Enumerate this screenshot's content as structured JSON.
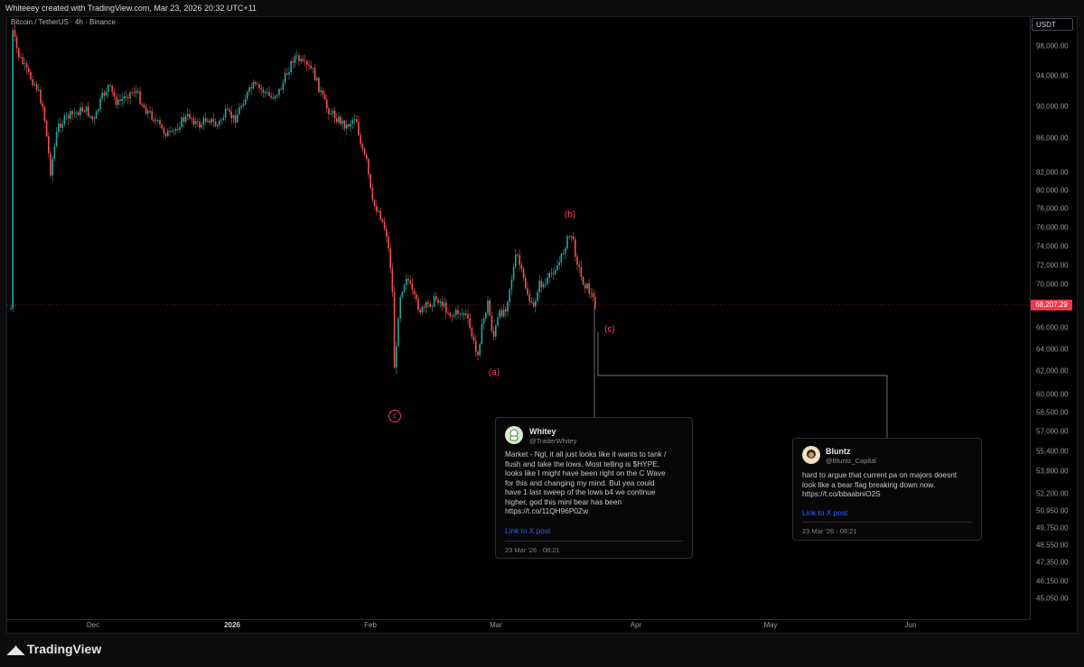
{
  "header": {
    "attribution": "Whiteeey created with TradingView.com, Mar 23, 2026 20:32 UTC+11"
  },
  "chart": {
    "symbol_line": "Bitcoin / TetherUS · 4h · Binance",
    "currency": "USDT",
    "current_price": "68,207.29",
    "price_ticks": [
      "98,000.00",
      "94,000.00",
      "90,000.00",
      "86,000.00",
      "82,000.00",
      "80,000.00",
      "78,000.00",
      "76,000.00",
      "74,000.00",
      "72,000.00",
      "70,000.00",
      "66,000.00",
      "64,000.00",
      "62,000.00",
      "60,000.00",
      "58,500.00",
      "57,000.00",
      "55,400.00",
      "53,800.00",
      "52,200.00",
      "50,950.00",
      "49,750.00",
      "48,550.00",
      "47,350.00",
      "46,150.00",
      "45,050.00"
    ],
    "time_ticks": [
      "Dec",
      "2026",
      "Feb",
      "Mar",
      "Apr",
      "May",
      "Jun"
    ],
    "waves": {
      "c_circle": "c",
      "a": "(a)",
      "b": "(b)",
      "c": "(c)"
    }
  },
  "tweets": [
    {
      "name": "Whitey",
      "handle": "@TraderWhitey",
      "body_lines": [
        "Market - Ngl, it all just looks like it wants to tank /",
        "flush and take the lows. Most telling is $HYPE,",
        "looks like I might have been right on the C Wave",
        "for this and changing my mind. But yea could",
        "have 1 last sweep of the lows b4 we continue",
        "higher, god this mini bear has been",
        "https://t.co/11QH96P0Zw"
      ],
      "link": "Link to X post",
      "date": "23 Mar '26 · 08:21"
    },
    {
      "name": "Bluntz",
      "handle": "@Bluntz_Capital",
      "body_lines": [
        "hard to argue that current pa on majors doesnt",
        "look like a bear flag breaking down now.",
        "https://t.co/bbaabniO2S"
      ],
      "link": "Link to X post",
      "date": "23 Mar '26 · 08:21"
    }
  ],
  "footer": {
    "brand": "TradingView"
  },
  "colors": {
    "up": "#26a69a",
    "down": "#ef5350",
    "wave": "#ff3b5c",
    "link": "#2962ff"
  }
}
